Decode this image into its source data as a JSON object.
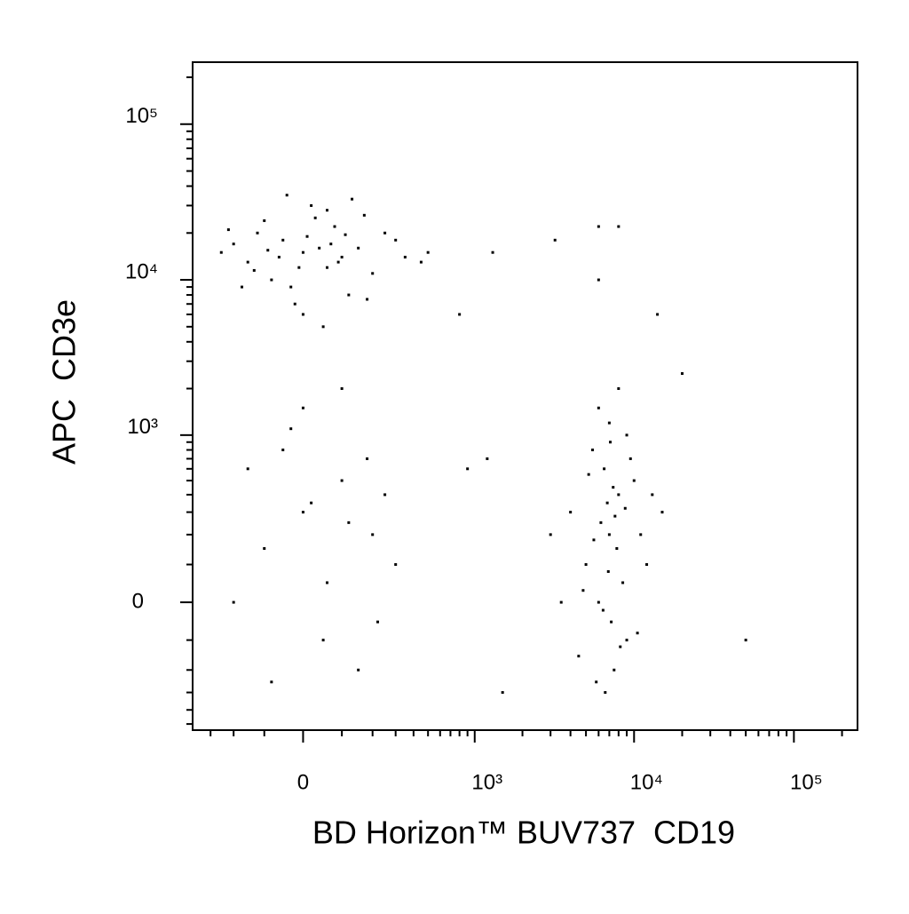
{
  "chart_data": {
    "type": "scatter",
    "x_label": "BD Horizon™ BUV737  CD19",
    "y_label": "APC  CD3e",
    "xscale": "biexponential",
    "yscale": "biexponential",
    "color": "#000000",
    "xlim": [
      -400,
      250000
    ],
    "ylim": [
      -550,
      250000
    ],
    "xticks": [
      0,
      {
        "value": 1000,
        "label": "10³"
      },
      {
        "value": 10000,
        "label": "10⁴"
      },
      {
        "value": 100000,
        "label": "10⁵"
      }
    ],
    "yticks": [
      0,
      {
        "value": 1000,
        "label": "10³"
      },
      {
        "value": 10000,
        "label": "10⁴"
      },
      {
        "value": 100000,
        "label": "10⁵"
      }
    ],
    "xminorticks": [
      -300,
      -200,
      -100,
      100,
      200,
      300,
      400,
      500,
      600,
      700,
      800,
      900,
      2000,
      3000,
      4000,
      5000,
      6000,
      7000,
      8000,
      9000,
      20000,
      30000,
      40000,
      50000,
      60000,
      70000,
      80000,
      90000,
      200000
    ],
    "yminorticks": [
      -500,
      -400,
      -300,
      -200,
      -100,
      100,
      200,
      300,
      400,
      500,
      600,
      700,
      800,
      900,
      2000,
      3000,
      4000,
      5000,
      6000,
      7000,
      8000,
      9000,
      20000,
      30000,
      40000,
      50000,
      60000,
      70000,
      80000,
      90000,
      200000
    ],
    "x": [
      0,
      -50,
      60,
      -120,
      100,
      30,
      -80,
      150,
      -150,
      20,
      80,
      -30,
      200,
      -200,
      120,
      -100,
      40,
      -60,
      10,
      90,
      -20,
      250,
      -250,
      170,
      -170,
      50,
      -40,
      130,
      300,
      -10,
      70,
      -90,
      110,
      -130,
      0,
      180,
      -220,
      60,
      350,
      450,
      0,
      -100,
      100,
      50,
      -150,
      200,
      150,
      -50,
      250,
      0,
      100,
      -200,
      300,
      20,
      -80,
      180,
      60,
      -30,
      220,
      120,
      7000,
      6000,
      8000,
      5000,
      9000,
      6500,
      7500,
      4000,
      11000,
      5500,
      8500,
      6800,
      7200,
      10000,
      3500,
      12000,
      4500,
      6200,
      7800,
      9500,
      5800,
      7000,
      8000,
      6000,
      13000,
      15000,
      3000,
      9000,
      6600,
      7400,
      8200,
      5200,
      6900,
      7600,
      4800,
      10500,
      7100,
      5600,
      8800,
      6400,
      1200,
      900,
      1300,
      3200,
      6000,
      8000,
      6000,
      14000,
      800,
      1500,
      50000,
      20000,
      500
    ],
    "y": [
      15000,
      18000,
      12000,
      20000,
      14000,
      25000,
      10000,
      16000,
      13000,
      30000,
      22000,
      9000,
      11000,
      17000,
      8000,
      24000,
      16000,
      14000,
      19000,
      13000,
      7000,
      20000,
      15000,
      26000,
      9000,
      5000,
      35000,
      33000,
      18000,
      12000,
      17000,
      15500,
      19500,
      11500,
      6000,
      7500,
      21000,
      28000,
      14000,
      13000,
      300,
      150,
      500,
      -100,
      600,
      200,
      -200,
      800,
      400,
      1500,
      2000,
      0,
      100,
      350,
      -250,
      700,
      50,
      1100,
      -50,
      250,
      200,
      0,
      400,
      100,
      -100,
      600,
      -200,
      300,
      200,
      800,
      50,
      350,
      -50,
      500,
      0,
      100,
      -150,
      250,
      150,
      700,
      -250,
      1200,
      2000,
      1500,
      400,
      300,
      200,
      1000,
      -300,
      450,
      -120,
      550,
      80,
      280,
      30,
      -80,
      900,
      180,
      320,
      -20,
      700,
      600,
      15000,
      18000,
      22000,
      22000,
      10000,
      6000,
      6000,
      -300,
      -100,
      2500,
      15000
    ]
  }
}
